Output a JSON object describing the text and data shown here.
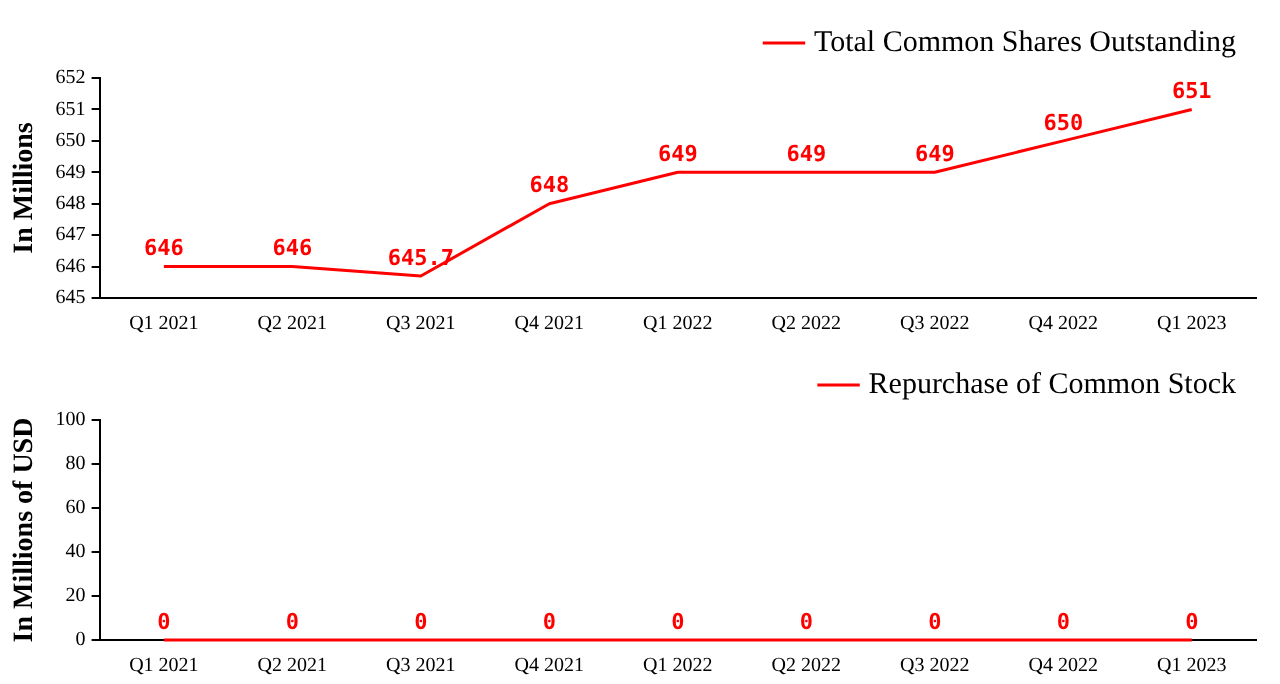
{
  "chart_data": [
    {
      "type": "line",
      "ylabel": "In Millions",
      "categories": [
        "Q1 2021",
        "Q2 2021",
        "Q3 2021",
        "Q4 2021",
        "Q1 2022",
        "Q2 2022",
        "Q3 2022",
        "Q4 2022",
        "Q1 2023"
      ],
      "series": [
        {
          "name": "Total Common Shares Outstanding",
          "color": "#ff0000",
          "values": [
            646,
            646,
            645.7,
            648,
            649,
            649,
            649,
            650,
            651
          ]
        }
      ],
      "ylim": [
        645,
        652
      ],
      "yticks": [
        645,
        646,
        647,
        648,
        649,
        650,
        651,
        652
      ],
      "data_labels": true,
      "legend": "top right",
      "marker": "none",
      "grid": false
    },
    {
      "type": "line",
      "ylabel": "In Millions of USD",
      "categories": [
        "Q1 2021",
        "Q2 2021",
        "Q3 2021",
        "Q4 2021",
        "Q1 2022",
        "Q2 2022",
        "Q3 2022",
        "Q4 2022",
        "Q1 2023"
      ],
      "series": [
        {
          "name": "Repurchase of Common Stock",
          "color": "#ff0000",
          "values": [
            0,
            0,
            0,
            0,
            0,
            0,
            0,
            0,
            0
          ]
        }
      ],
      "ylim": [
        0,
        100
      ],
      "yticks": [
        0,
        20,
        40,
        60,
        80,
        100
      ],
      "data_labels": true,
      "legend": "top right",
      "marker": "none",
      "grid": false
    }
  ]
}
